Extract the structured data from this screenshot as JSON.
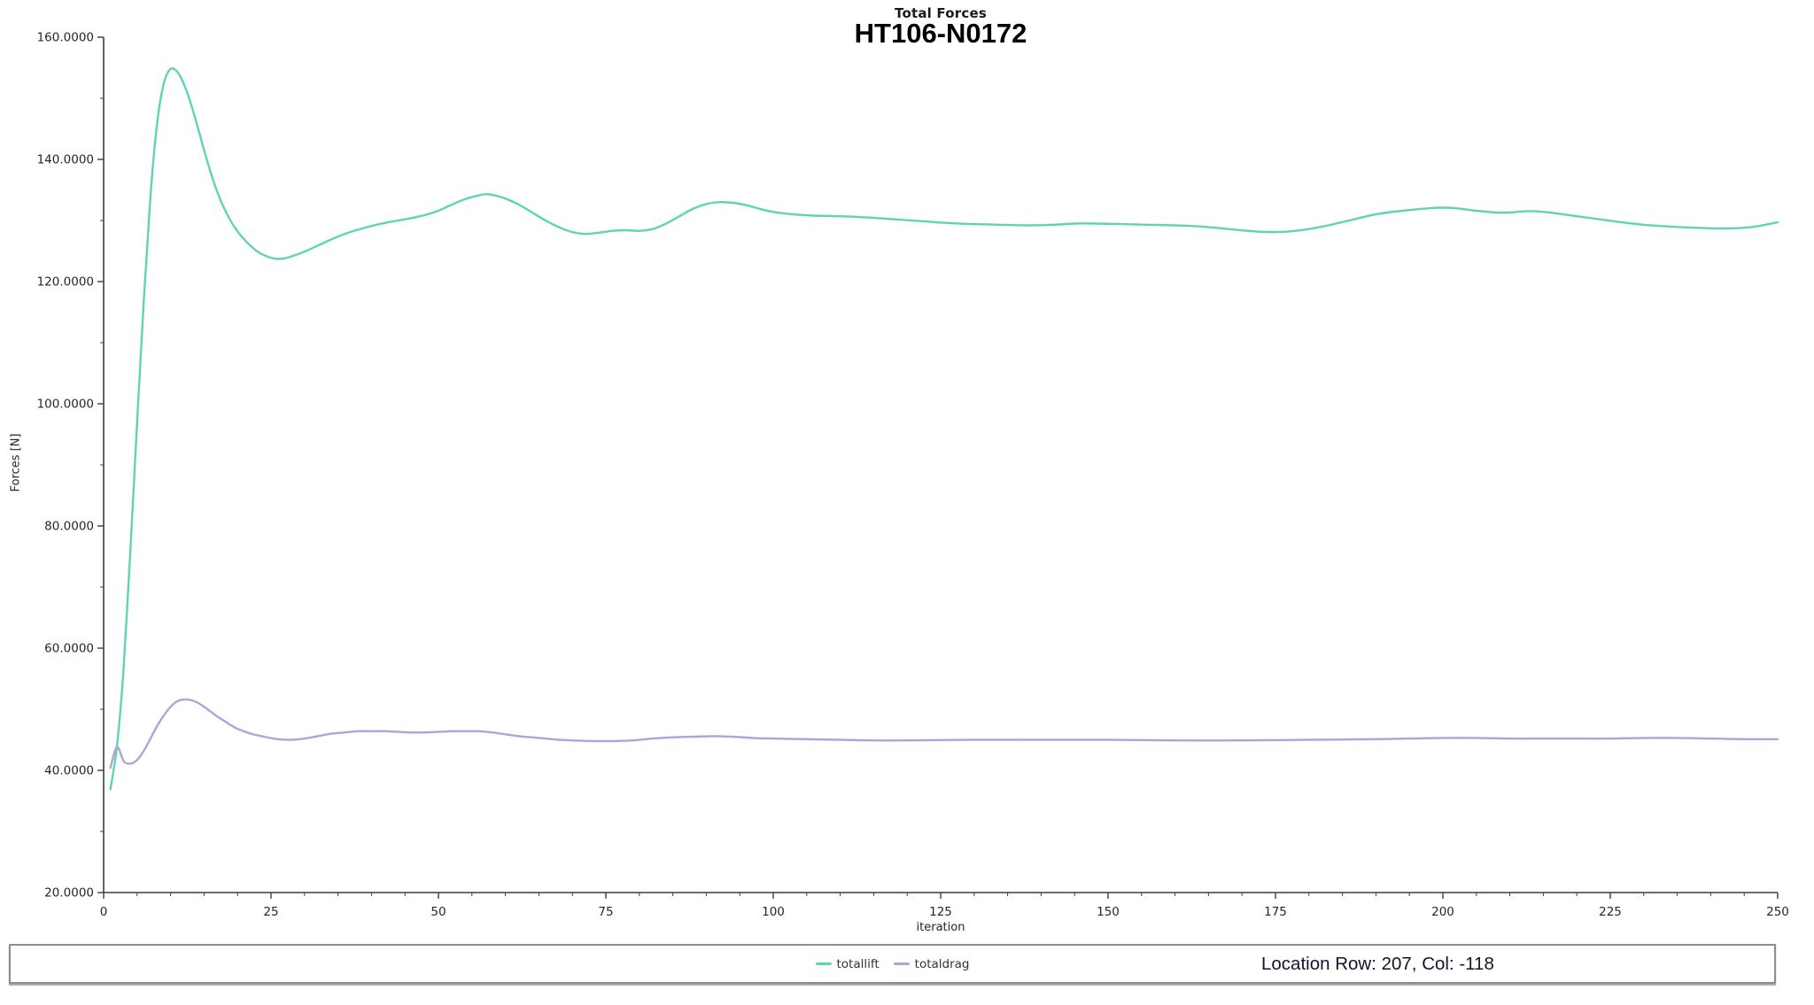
{
  "titles": {
    "small": "Total Forces",
    "main": "HT106-N0172"
  },
  "axes": {
    "xlabel": "iteration",
    "ylabel": "Forces [N]"
  },
  "status_bar": {
    "location_text": "Location Row: 207, Col: -118"
  },
  "colors": {
    "totallift": "#5fd4b4",
    "totaldrag": "#aaa6db",
    "axis": "#3d3d3d",
    "tick_label": "#262626",
    "location_text": "#14142c"
  },
  "chart_data": {
    "type": "line",
    "title": "Total Forces",
    "subtitle": "HT106-N0172",
    "xlabel": "iteration",
    "ylabel": "Forces [N]",
    "xlim": [
      0,
      250
    ],
    "ylim": [
      20,
      160
    ],
    "grid": false,
    "legend_position": "bottom-center",
    "x_major_ticks": [
      0,
      25,
      50,
      75,
      100,
      125,
      150,
      175,
      200,
      225,
      250
    ],
    "x_tick_labels": [
      "0",
      "25",
      "50",
      "75",
      "100",
      "125",
      "150",
      "175",
      "200",
      "225",
      "250"
    ],
    "x_minor_tick_step": 5,
    "y_major_ticks": [
      20,
      40,
      60,
      80,
      100,
      120,
      140,
      160
    ],
    "y_tick_labels": [
      "20.0000",
      "40.0000",
      "60.0000",
      "80.0000",
      "100.0000",
      "120.0000",
      "140.0000",
      "160.0000"
    ],
    "y_minor_ticks": [
      30,
      50,
      70,
      90,
      110,
      130,
      150
    ],
    "series": [
      {
        "name": "totallift",
        "color": "#5fd4b4",
        "points": [
          [
            1,
            36.9
          ],
          [
            2,
            44
          ],
          [
            3,
            57
          ],
          [
            4,
            76
          ],
          [
            5,
            97
          ],
          [
            6,
            117
          ],
          [
            7,
            134
          ],
          [
            8,
            146
          ],
          [
            9,
            152.5
          ],
          [
            10,
            154.8
          ],
          [
            11,
            154.3
          ],
          [
            12,
            152.3
          ],
          [
            13,
            149.2
          ],
          [
            14,
            145.5
          ],
          [
            15,
            141.5
          ],
          [
            16,
            137.8
          ],
          [
            17,
            134.6
          ],
          [
            18,
            132
          ],
          [
            19,
            129.9
          ],
          [
            20,
            128.2
          ],
          [
            21,
            126.9
          ],
          [
            22,
            125.8
          ],
          [
            23,
            124.9
          ],
          [
            24,
            124.3
          ],
          [
            25,
            123.9
          ],
          [
            26,
            123.7
          ],
          [
            27,
            123.8
          ],
          [
            28,
            124.1
          ],
          [
            30,
            124.9
          ],
          [
            32,
            125.9
          ],
          [
            34,
            126.9
          ],
          [
            36,
            127.8
          ],
          [
            38,
            128.5
          ],
          [
            40,
            129.1
          ],
          [
            42,
            129.6
          ],
          [
            44,
            130
          ],
          [
            46,
            130.4
          ],
          [
            48,
            130.9
          ],
          [
            50,
            131.6
          ],
          [
            52,
            132.6
          ],
          [
            54,
            133.5
          ],
          [
            56,
            134.1
          ],
          [
            57,
            134.3
          ],
          [
            58,
            134.2
          ],
          [
            60,
            133.6
          ],
          [
            62,
            132.6
          ],
          [
            64,
            131.3
          ],
          [
            66,
            130
          ],
          [
            68,
            128.9
          ],
          [
            70,
            128.1
          ],
          [
            72,
            127.8
          ],
          [
            74,
            128
          ],
          [
            76,
            128.3
          ],
          [
            78,
            128.4
          ],
          [
            80,
            128.3
          ],
          [
            82,
            128.6
          ],
          [
            84,
            129.5
          ],
          [
            86,
            130.7
          ],
          [
            88,
            131.9
          ],
          [
            90,
            132.7
          ],
          [
            92,
            133
          ],
          [
            94,
            132.9
          ],
          [
            96,
            132.5
          ],
          [
            98,
            131.9
          ],
          [
            100,
            131.4
          ],
          [
            103,
            131
          ],
          [
            106,
            130.8
          ],
          [
            110,
            130.7
          ],
          [
            114,
            130.5
          ],
          [
            118,
            130.2
          ],
          [
            122,
            129.9
          ],
          [
            126,
            129.6
          ],
          [
            130,
            129.4
          ],
          [
            134,
            129.3
          ],
          [
            138,
            129.2
          ],
          [
            142,
            129.3
          ],
          [
            145,
            129.5
          ],
          [
            148,
            129.5
          ],
          [
            152,
            129.4
          ],
          [
            156,
            129.3
          ],
          [
            160,
            129.2
          ],
          [
            164,
            129
          ],
          [
            168,
            128.6
          ],
          [
            172,
            128.2
          ],
          [
            175,
            128.1
          ],
          [
            178,
            128.3
          ],
          [
            182,
            129
          ],
          [
            186,
            130
          ],
          [
            190,
            131
          ],
          [
            194,
            131.6
          ],
          [
            198,
            132
          ],
          [
            200,
            132.1
          ],
          [
            202,
            132
          ],
          [
            205,
            131.6
          ],
          [
            208,
            131.3
          ],
          [
            210,
            131.3
          ],
          [
            212,
            131.5
          ],
          [
            214,
            131.5
          ],
          [
            216,
            131.3
          ],
          [
            218,
            131
          ],
          [
            222,
            130.4
          ],
          [
            226,
            129.8
          ],
          [
            230,
            129.3
          ],
          [
            234,
            129
          ],
          [
            238,
            128.8
          ],
          [
            242,
            128.7
          ],
          [
            246,
            128.9
          ],
          [
            250,
            129.7
          ]
        ]
      },
      {
        "name": "totaldrag",
        "color": "#aaa6db",
        "points": [
          [
            1,
            40.4
          ],
          [
            2,
            43.8
          ],
          [
            3,
            41.5
          ],
          [
            4,
            41.1
          ],
          [
            5,
            41.7
          ],
          [
            6,
            43.2
          ],
          [
            7,
            45.2
          ],
          [
            8,
            47.3
          ],
          [
            9,
            49
          ],
          [
            10,
            50.4
          ],
          [
            11,
            51.3
          ],
          [
            12,
            51.6
          ],
          [
            13,
            51.5
          ],
          [
            14,
            51.1
          ],
          [
            15,
            50.4
          ],
          [
            16,
            49.6
          ],
          [
            17,
            48.8
          ],
          [
            18,
            48.1
          ],
          [
            19,
            47.4
          ],
          [
            20,
            46.8
          ],
          [
            22,
            46
          ],
          [
            24,
            45.5
          ],
          [
            26,
            45.1
          ],
          [
            28,
            45
          ],
          [
            30,
            45.2
          ],
          [
            32,
            45.6
          ],
          [
            34,
            46
          ],
          [
            36,
            46.2
          ],
          [
            38,
            46.4
          ],
          [
            40,
            46.4
          ],
          [
            42,
            46.4
          ],
          [
            44,
            46.3
          ],
          [
            46,
            46.2
          ],
          [
            48,
            46.2
          ],
          [
            50,
            46.3
          ],
          [
            52,
            46.4
          ],
          [
            54,
            46.4
          ],
          [
            56,
            46.4
          ],
          [
            58,
            46.2
          ],
          [
            60,
            45.9
          ],
          [
            62,
            45.6
          ],
          [
            64,
            45.4
          ],
          [
            66,
            45.2
          ],
          [
            68,
            45
          ],
          [
            70,
            44.9
          ],
          [
            73,
            44.8
          ],
          [
            76,
            44.8
          ],
          [
            79,
            44.9
          ],
          [
            82,
            45.2
          ],
          [
            85,
            45.4
          ],
          [
            88,
            45.5
          ],
          [
            91,
            45.6
          ],
          [
            94,
            45.5
          ],
          [
            97,
            45.3
          ],
          [
            100,
            45.2
          ],
          [
            105,
            45.1
          ],
          [
            110,
            45
          ],
          [
            115,
            44.9
          ],
          [
            120,
            44.9
          ],
          [
            130,
            45
          ],
          [
            140,
            45
          ],
          [
            150,
            45
          ],
          [
            160,
            44.9
          ],
          [
            170,
            44.9
          ],
          [
            180,
            45
          ],
          [
            190,
            45.1
          ],
          [
            195,
            45.2
          ],
          [
            200,
            45.3
          ],
          [
            205,
            45.3
          ],
          [
            210,
            45.2
          ],
          [
            215,
            45.2
          ],
          [
            220,
            45.2
          ],
          [
            225,
            45.2
          ],
          [
            230,
            45.3
          ],
          [
            235,
            45.3
          ],
          [
            240,
            45.2
          ],
          [
            245,
            45.1
          ],
          [
            250,
            45.1
          ]
        ]
      }
    ]
  }
}
